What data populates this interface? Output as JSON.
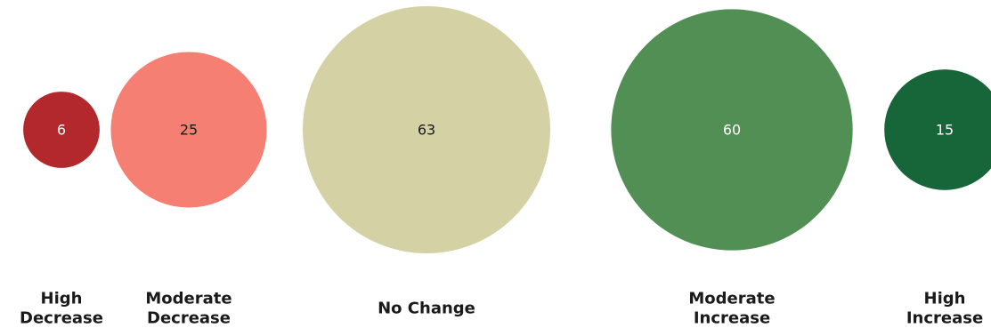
{
  "chart_data": {
    "type": "bubble",
    "title": "",
    "categories": [
      {
        "label_lines": [
          "High",
          "Decrease"
        ],
        "value": 6,
        "color": "#b3282d",
        "text_color": "#ffffff"
      },
      {
        "label_lines": [
          "Moderate",
          "Decrease"
        ],
        "value": 25,
        "color": "#f47f72",
        "text_color": "#1a1a1a"
      },
      {
        "label_lines": [
          "No Change"
        ],
        "value": 63,
        "color": "#d4d1a5",
        "text_color": "#1a1a1a"
      },
      {
        "label_lines": [
          "Moderate",
          "Increase"
        ],
        "value": 60,
        "color": "#528f54",
        "text_color": "#ffffff"
      },
      {
        "label_lines": [
          "High",
          "Increase"
        ],
        "value": 15,
        "color": "#17663a",
        "text_color": "#ffffff"
      }
    ]
  }
}
